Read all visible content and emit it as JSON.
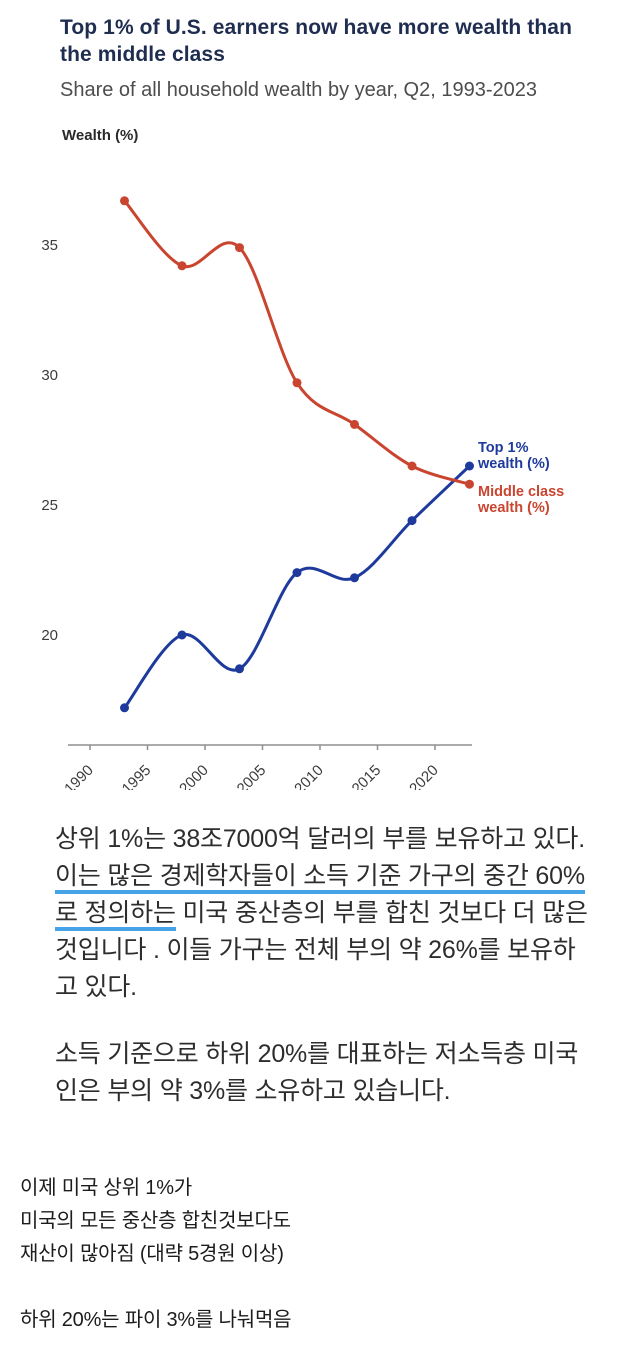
{
  "chart": {
    "title": "Top 1% of U.S. earners now have more wealth than the middle class",
    "subtitle": "Share of all household wealth by year, Q2, 1993-2023",
    "y_axis_label": "Wealth (%)"
  },
  "chart_data": {
    "type": "line",
    "x": [
      1993,
      1998,
      2003,
      2008,
      2013,
      2018,
      2023
    ],
    "series": [
      {
        "name": "Top 1% wealth (%)",
        "color": "#1e3a9c",
        "values": [
          17.2,
          20.0,
          18.7,
          22.4,
          22.2,
          24.4,
          26.5
        ]
      },
      {
        "name": "Middle class wealth (%)",
        "color": "#c9452f",
        "values": [
          36.7,
          34.2,
          34.9,
          29.7,
          28.1,
          26.5,
          25.8
        ]
      }
    ],
    "xticks": [
      1990,
      1995,
      2000,
      2005,
      2010,
      2015,
      2020
    ],
    "yticks": [
      20,
      25,
      30,
      35
    ],
    "xlim": [
      1990,
      2024
    ],
    "ylim": [
      15.8,
      38.6
    ],
    "grid": "off",
    "legend_position": "right",
    "title": "Top 1% of U.S. earners now have more wealth than the middle class",
    "xlabel": "",
    "ylabel": "Wealth (%)"
  },
  "body": {
    "paragraph1_part1": "상위 1%는 38조7000억 달러의 부를 보유하고 있다. ",
    "paragraph1_underlined": "이는 많은 경제학자들이 소득 기준 가구의 중간 60%로 정의하는",
    "paragraph1_part2": " 미국 중산층의 부를 합친 것보다 더 많은 것입니다 . 이들 가구는 전체 부의 약 26%를 보유하고 있다.",
    "paragraph2": "소득 기준으로 하위 20%를 대표하는 저소득층 미국인은 부의 약 3%를 소유하고 있습니다.",
    "comment_lines": [
      "이제 미국 상위 1%가",
      "미국의 모든 중산층 합친것보다도",
      "재산이 많아짐 (대략 5경원 이상)",
      "",
      "하위 20%는 파이 3%를 나눠먹음"
    ]
  }
}
